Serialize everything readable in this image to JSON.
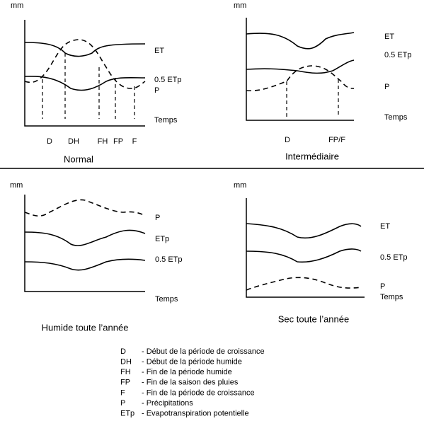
{
  "panels": [
    {
      "y_label": "mm",
      "curve_labels": [
        "ET",
        "0.5 ETp",
        "P"
      ],
      "x_label": "Temps",
      "markers": [
        "D",
        "DH",
        "FH",
        "FP",
        "F"
      ],
      "title": "Normal"
    },
    {
      "y_label": "mm",
      "curve_labels": [
        "ET",
        "0.5 ETp",
        "P"
      ],
      "x_label": "Temps",
      "markers": [
        "D",
        "FP/F"
      ],
      "title": "Intermédiaire"
    },
    {
      "y_label": "mm",
      "curve_labels": [
        "P",
        "ETp",
        "0.5 ETp"
      ],
      "x_label": "Temps",
      "title": "Humide toute l’année"
    },
    {
      "y_label": "mm",
      "curve_labels": [
        "ET",
        "0.5 ETp",
        "P"
      ],
      "x_label": "Temps",
      "title": "Sec toute l’année"
    }
  ],
  "legend": [
    {
      "abbr": "D",
      "text": "- Début de la période de croissance"
    },
    {
      "abbr": "DH",
      "text": "- Début de la période humide"
    },
    {
      "abbr": "FH",
      "text": "- Fin de la période humide"
    },
    {
      "abbr": "FP",
      "text": "- Fin de la saison des pluies"
    },
    {
      "abbr": "F",
      "text": "- Fin de la période de croissance"
    },
    {
      "abbr": "P",
      "text": "- Précipitations"
    },
    {
      "abbr": "ETp",
      "text": "- Evapotranspiration potentielle"
    }
  ]
}
